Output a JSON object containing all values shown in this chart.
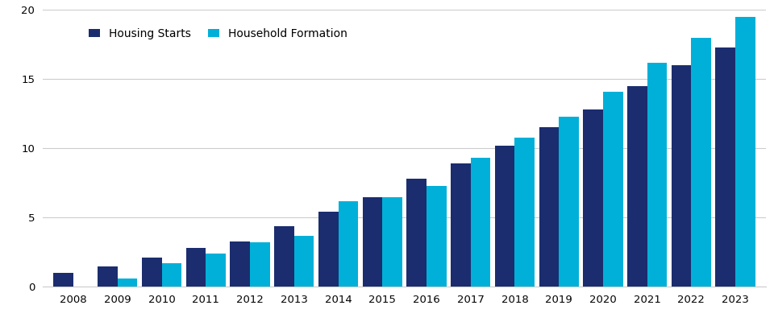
{
  "years": [
    2008,
    2009,
    2010,
    2011,
    2012,
    2013,
    2014,
    2015,
    2016,
    2017,
    2018,
    2019,
    2020,
    2021,
    2022,
    2023
  ],
  "housing_starts": [
    1.0,
    1.5,
    2.1,
    2.8,
    3.3,
    4.4,
    5.4,
    6.5,
    7.8,
    8.9,
    10.2,
    11.5,
    12.8,
    14.5,
    16.0,
    17.3
  ],
  "household_formation": [
    0.05,
    0.6,
    1.7,
    2.4,
    3.2,
    3.7,
    6.2,
    6.5,
    7.3,
    9.3,
    10.8,
    12.3,
    14.1,
    16.2,
    18.0,
    19.5
  ],
  "housing_starts_color": "#1b2d6e",
  "household_formation_color": "#00b0d8",
  "background_color": "#ffffff",
  "grid_color": "#cccccc",
  "legend_label_1": "Housing Starts",
  "legend_label_2": "Household Formation",
  "ylim": [
    0,
    20
  ],
  "yticks": [
    0,
    5,
    10,
    15,
    20
  ],
  "bar_width": 0.45,
  "figsize": [
    9.6,
    4.05
  ],
  "dpi": 100
}
